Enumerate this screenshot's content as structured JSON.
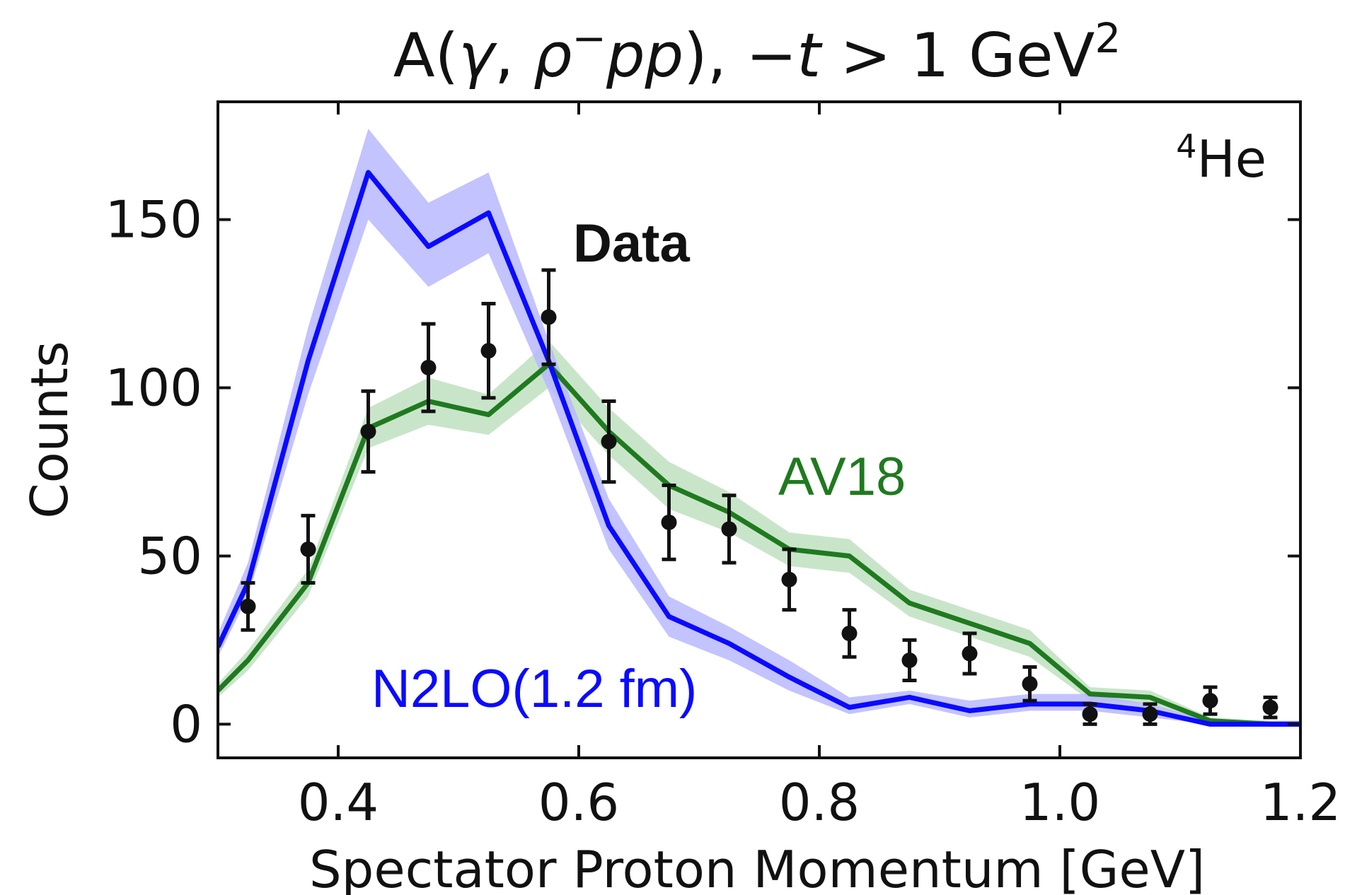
{
  "chart_data": {
    "type": "line",
    "title": "A(γ, ρ⁻pp), −t > 1 GeV²",
    "title_parts": {
      "prefix": "A(",
      "gamma": "γ",
      "comma": ", ",
      "rho": "ρ",
      "minus_sup": "−",
      "pp": "pp",
      "close": "), ",
      "minus_t": "−",
      "t": "t",
      "gt": " > 1 GeV",
      "sup2": "2"
    },
    "xlabel": "Spectator Proton Momentum [GeV]",
    "ylabel": "Counts",
    "xlim": [
      0.3,
      1.2
    ],
    "ylim": [
      -10,
      185
    ],
    "xticks": [
      0.4,
      0.6,
      0.8,
      1.0,
      1.2
    ],
    "xtick_labels": [
      "0.4",
      "0.6",
      "0.8",
      "1.0",
      "1.2"
    ],
    "yticks": [
      0,
      50,
      100,
      150
    ],
    "ytick_labels": [
      "0",
      "50",
      "100",
      "150"
    ],
    "grid": false,
    "nucleus_label": {
      "sup": "4",
      "text": "He"
    },
    "series": [
      {
        "name": "N2LO(1.2 fm)",
        "color": "#0a0aff",
        "band_color": "#b8b8ff",
        "x": [
          0.3,
          0.325,
          0.375,
          0.425,
          0.475,
          0.525,
          0.575,
          0.625,
          0.675,
          0.725,
          0.775,
          0.825,
          0.875,
          0.925,
          0.975,
          1.025,
          1.075,
          1.125,
          1.175,
          1.2
        ],
        "y": [
          23,
          42,
          108,
          164,
          142,
          152,
          108,
          59,
          32,
          24,
          14,
          5,
          8,
          4,
          6,
          6,
          4,
          0,
          0,
          0
        ],
        "band_lo": [
          20,
          38,
          98,
          150,
          130,
          140,
          99,
          52,
          26,
          19,
          10,
          3,
          6,
          2,
          4,
          4,
          2,
          0,
          0,
          0
        ],
        "band_hi": [
          27,
          48,
          118,
          177,
          155,
          164,
          114,
          67,
          38,
          29,
          19,
          8,
          10,
          7,
          9,
          9,
          6,
          1,
          1,
          1
        ]
      },
      {
        "name": "AV18",
        "color": "#1f7a1f",
        "band_color": "#bfe0bf",
        "x": [
          0.3,
          0.325,
          0.375,
          0.425,
          0.475,
          0.525,
          0.575,
          0.625,
          0.675,
          0.725,
          0.775,
          0.825,
          0.875,
          0.925,
          0.975,
          1.025,
          1.075,
          1.125,
          1.175,
          1.2
        ],
        "y": [
          10,
          19,
          42,
          88,
          96,
          92,
          107,
          87,
          71,
          63,
          52,
          50,
          36,
          30,
          24,
          9,
          8,
          1,
          0,
          0
        ],
        "band_lo": [
          8,
          16,
          38,
          82,
          89,
          86,
          100,
          80,
          64,
          57,
          47,
          45,
          32,
          26,
          20,
          7,
          6,
          0,
          0,
          0
        ],
        "band_hi": [
          12,
          22,
          46,
          94,
          103,
          98,
          114,
          94,
          78,
          69,
          57,
          55,
          40,
          34,
          28,
          11,
          10,
          2,
          1,
          1
        ]
      },
      {
        "name": "Data",
        "color": "#111111",
        "x": [
          0.325,
          0.375,
          0.425,
          0.475,
          0.525,
          0.575,
          0.625,
          0.675,
          0.725,
          0.775,
          0.825,
          0.875,
          0.925,
          0.975,
          1.025,
          1.075,
          1.125,
          1.175
        ],
        "y": [
          35,
          52,
          87,
          106,
          111,
          121,
          84,
          60,
          58,
          43,
          27,
          19,
          21,
          12,
          3,
          3,
          7,
          5
        ],
        "err": [
          7,
          10,
          12,
          13,
          14,
          14,
          12,
          11,
          10,
          9,
          7,
          6,
          6,
          5,
          3,
          3,
          4,
          3
        ]
      }
    ]
  }
}
